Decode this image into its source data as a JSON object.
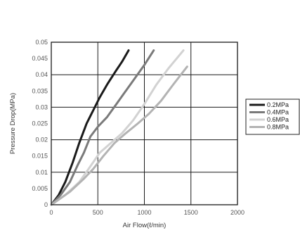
{
  "chart_data": {
    "type": "line",
    "xlabel": "Air Flow(ℓ/min)",
    "ylabel": "Pressure Drop(MPa)",
    "xlim": [
      0,
      2000
    ],
    "ylim": [
      0,
      0.05
    ],
    "x_ticks": [
      "0",
      "500",
      "1000",
      "1500",
      "2000"
    ],
    "y_ticks": [
      "0",
      "0.005",
      "0.01",
      "0.015",
      "0.02",
      "0.025",
      "0.03",
      "0.035",
      "0.04",
      "0.045",
      "0.05"
    ],
    "grid": true,
    "legend_position": "right",
    "series": [
      {
        "name": "0.2MPa",
        "color": "#1a1a1a",
        "points": [
          [
            0,
            0
          ],
          [
            80,
            0.003
          ],
          [
            150,
            0.007
          ],
          [
            230,
            0.013
          ],
          [
            300,
            0.019
          ],
          [
            380,
            0.025
          ],
          [
            450,
            0.029
          ],
          [
            520,
            0.033
          ],
          [
            600,
            0.037
          ],
          [
            690,
            0.041
          ],
          [
            760,
            0.044
          ],
          [
            830,
            0.0475
          ]
        ]
      },
      {
        "name": "0.4MPa",
        "color": "#7a7a7a",
        "points": [
          [
            0,
            0
          ],
          [
            100,
            0.003
          ],
          [
            200,
            0.007
          ],
          [
            280,
            0.012
          ],
          [
            350,
            0.016
          ],
          [
            420,
            0.021
          ],
          [
            500,
            0.024
          ],
          [
            600,
            0.027
          ],
          [
            700,
            0.031
          ],
          [
            800,
            0.035
          ],
          [
            900,
            0.039
          ],
          [
            1000,
            0.043
          ],
          [
            1100,
            0.0475
          ]
        ]
      },
      {
        "name": "0.6MPa",
        "color": "#d2d2d2",
        "points": [
          [
            0,
            0
          ],
          [
            150,
            0.003
          ],
          [
            300,
            0.007
          ],
          [
            400,
            0.011
          ],
          [
            520,
            0.016
          ],
          [
            640,
            0.019
          ],
          [
            760,
            0.022
          ],
          [
            880,
            0.026
          ],
          [
            1000,
            0.031
          ],
          [
            1130,
            0.037
          ],
          [
            1260,
            0.042
          ],
          [
            1420,
            0.0475
          ]
        ]
      },
      {
        "name": "0.8MPa",
        "color": "#b3b3b3",
        "points": [
          [
            0,
            0
          ],
          [
            200,
            0.004
          ],
          [
            350,
            0.008
          ],
          [
            450,
            0.011
          ],
          [
            560,
            0.015
          ],
          [
            680,
            0.019
          ],
          [
            800,
            0.022
          ],
          [
            930,
            0.025
          ],
          [
            1050,
            0.028
          ],
          [
            1180,
            0.032
          ],
          [
            1310,
            0.037
          ],
          [
            1460,
            0.0425
          ]
        ]
      }
    ]
  }
}
